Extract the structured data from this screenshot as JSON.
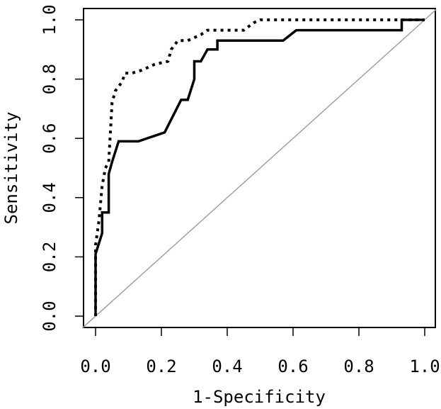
{
  "chart_data": {
    "type": "line",
    "title": "",
    "xlabel": "1-Specificity",
    "ylabel": "Sensitivity",
    "xlim": [
      0,
      1
    ],
    "ylim": [
      0,
      1
    ],
    "x_ticks": [
      "0.0",
      "0.2",
      "0.4",
      "0.6",
      "0.8",
      "1.0"
    ],
    "y_ticks": [
      "0.0",
      "0.2",
      "0.4",
      "0.6",
      "0.8",
      "1.0"
    ],
    "grid": false,
    "legend": "none",
    "colors": {
      "series": "#000000",
      "reference": "#a0a0a0",
      "frame": "#000000"
    },
    "series": [
      {
        "style": "solid",
        "points": [
          [
            0.0,
            0.0
          ],
          [
            0.0,
            0.21
          ],
          [
            0.02,
            0.28
          ],
          [
            0.02,
            0.35
          ],
          [
            0.04,
            0.35
          ],
          [
            0.04,
            0.48
          ],
          [
            0.05,
            0.52
          ],
          [
            0.07,
            0.59
          ],
          [
            0.13,
            0.59
          ],
          [
            0.21,
            0.62
          ],
          [
            0.26,
            0.73
          ],
          [
            0.28,
            0.73
          ],
          [
            0.3,
            0.8
          ],
          [
            0.3,
            0.86
          ],
          [
            0.32,
            0.86
          ],
          [
            0.34,
            0.9
          ],
          [
            0.37,
            0.9
          ],
          [
            0.37,
            0.93
          ],
          [
            0.57,
            0.93
          ],
          [
            0.61,
            0.965
          ],
          [
            0.93,
            0.965
          ],
          [
            0.93,
            1.0
          ],
          [
            1.0,
            1.0
          ]
        ]
      },
      {
        "style": "dotted",
        "points": [
          [
            0.0,
            0.0
          ],
          [
            0.0,
            0.24
          ],
          [
            0.01,
            0.32
          ],
          [
            0.02,
            0.44
          ],
          [
            0.03,
            0.5
          ],
          [
            0.04,
            0.52
          ],
          [
            0.05,
            0.72
          ],
          [
            0.06,
            0.76
          ],
          [
            0.08,
            0.79
          ],
          [
            0.09,
            0.82
          ],
          [
            0.11,
            0.82
          ],
          [
            0.14,
            0.83
          ],
          [
            0.18,
            0.85
          ],
          [
            0.22,
            0.86
          ],
          [
            0.23,
            0.9
          ],
          [
            0.25,
            0.93
          ],
          [
            0.28,
            0.93
          ],
          [
            0.32,
            0.95
          ],
          [
            0.34,
            0.965
          ],
          [
            0.4,
            0.965
          ],
          [
            0.45,
            0.965
          ],
          [
            0.48,
            0.99
          ],
          [
            0.5,
            1.0
          ],
          [
            0.57,
            1.0
          ],
          [
            1.0,
            1.0
          ]
        ]
      }
    ],
    "reference_line": [
      [
        0,
        0
      ],
      [
        1,
        1
      ]
    ]
  }
}
